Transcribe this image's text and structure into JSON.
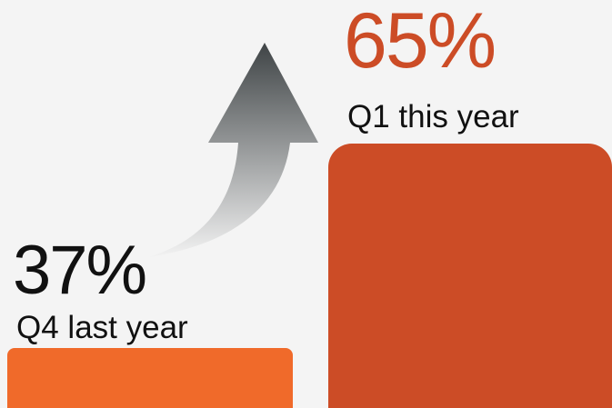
{
  "colors": {
    "background": "#f4f4f4",
    "q4_bar": "#f06a2a",
    "q1_bar": "#cc4c26",
    "q4_value_text": "#111111",
    "q1_value_text": "#cc4c26",
    "category_text": "#111111",
    "arrow_top": "#3f4446",
    "arrow_bottom": "#f2f2f2"
  },
  "chart_data": {
    "type": "bar",
    "categories": [
      "Q4 last year",
      "Q1 this year"
    ],
    "values": [
      37,
      65
    ],
    "value_labels": [
      "37%",
      "65%"
    ],
    "unit": "%",
    "ylim": [
      0,
      100
    ],
    "grid": false,
    "legend": false,
    "annotations": [
      {
        "type": "arrow",
        "direction": "up",
        "from": "Q4 last year",
        "to": "Q1 this year"
      }
    ]
  }
}
